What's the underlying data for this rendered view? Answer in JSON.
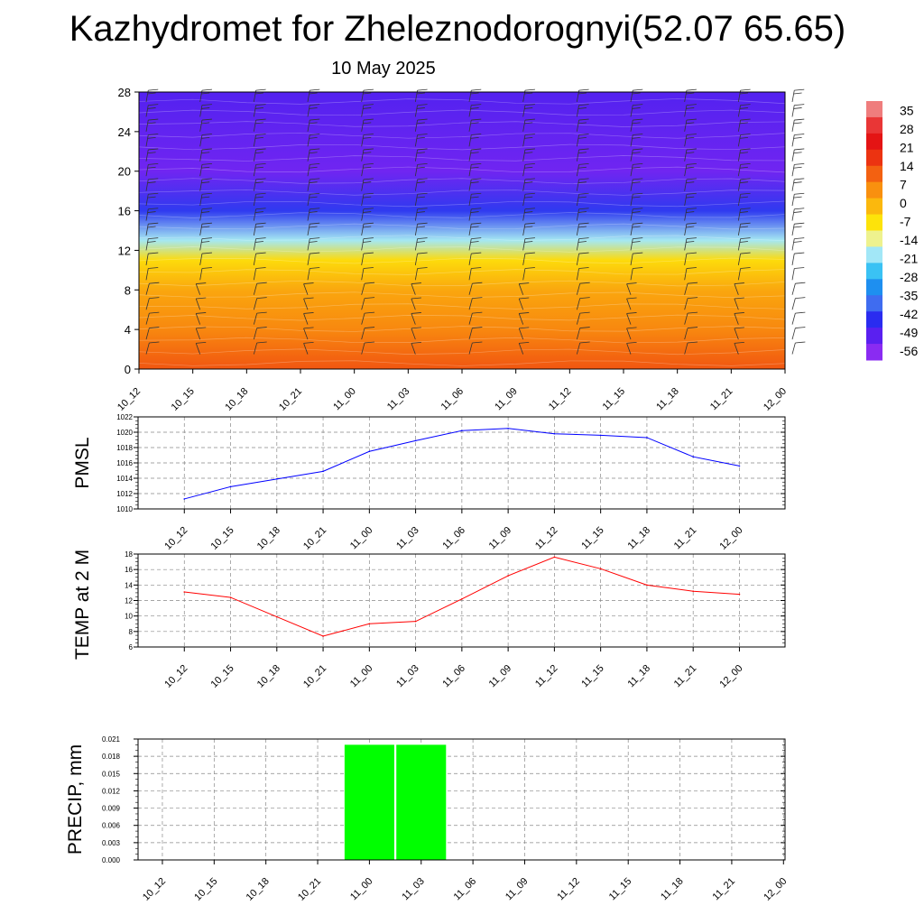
{
  "header": {
    "title": "Kazhydromet for Zheleznodorognyi(52.07 65.65)",
    "date": "10 May 2025"
  },
  "colors": {
    "pmsl_line": "#0000ff",
    "temp_line": "#ff0000",
    "precip_bar": "#00ff00",
    "grid": "#888888"
  },
  "chart_data": [
    {
      "type": "heatmap",
      "description": "vertical temperature cross-section with wind barbs",
      "x": [
        "10_12",
        "10_15",
        "10_18",
        "10_21",
        "11_00",
        "11_03",
        "11_06",
        "11_09",
        "11_12",
        "11_15",
        "11_18",
        "11_21",
        "12_00"
      ],
      "y_ticks": [
        0,
        4,
        8,
        12,
        16,
        20,
        24,
        28
      ],
      "ylim": [
        0,
        28
      ],
      "colorbar_labels": [
        "35",
        "28",
        "21",
        "14",
        "7",
        "0",
        "-7",
        "-14",
        "-21",
        "-28",
        "-35",
        "-42",
        "-49",
        "-56"
      ],
      "colorbar_colors": [
        "#ef7d7d",
        "#e93636",
        "#e41414",
        "#ec3311",
        "#f36111",
        "#f9900f",
        "#fbb80d",
        "#fde30a",
        "#eef28e",
        "#a2e7f7",
        "#3ac2f4",
        "#1e8ff0",
        "#3f6cf0",
        "#2a2cf0",
        "#5a20f0",
        "#8a2bf2"
      ],
      "color_by_height": [
        {
          "y": 0,
          "value": 14
        },
        {
          "y": 4,
          "value": 7
        },
        {
          "y": 8,
          "value": 2
        },
        {
          "y": 11,
          "value": -6
        },
        {
          "y": 13,
          "value": -20
        },
        {
          "y": 16,
          "value": -45
        },
        {
          "y": 20,
          "value": -56
        },
        {
          "y": 28,
          "value": -52
        }
      ]
    },
    {
      "type": "line",
      "ylabel": "PMSL",
      "x": [
        "10_12",
        "10_15",
        "10_18",
        "10_21",
        "11_00",
        "11_03",
        "11_06",
        "11_09",
        "11_12",
        "11_15",
        "11_18",
        "11_21",
        "12_00"
      ],
      "y_ticks": [
        1010,
        1012,
        1014,
        1016,
        1018,
        1020,
        1022
      ],
      "ylim": [
        1010,
        1022
      ],
      "series": [
        {
          "values": [
            1011.3,
            1012.9,
            1013.9,
            1014.9,
            1017.5,
            1018.9,
            1020.2,
            1020.5,
            1019.8,
            1019.6,
            1019.3,
            1016.8,
            1015.6
          ]
        }
      ]
    },
    {
      "type": "line",
      "ylabel": "TEMP at 2 M",
      "x": [
        "10_12",
        "10_15",
        "10_18",
        "10_21",
        "11_00",
        "11_03",
        "11_06",
        "11_09",
        "11_12",
        "11_15",
        "11_18",
        "11_21",
        "12_00"
      ],
      "y_ticks": [
        6,
        8,
        10,
        12,
        14,
        16,
        18
      ],
      "ylim": [
        6,
        18
      ],
      "series": [
        {
          "values": [
            13.1,
            12.4,
            9.9,
            7.4,
            9.0,
            9.3,
            12.2,
            15.2,
            17.6,
            16.1,
            14.0,
            13.2,
            12.8
          ]
        }
      ]
    },
    {
      "type": "bar",
      "ylabel": "PRECIP, mm",
      "categories": [
        "10_12",
        "10_15",
        "10_18",
        "10_21",
        "11_00",
        "11_03",
        "11_06",
        "11_09",
        "11_12",
        "11_15",
        "11_18",
        "11_21",
        "12_00"
      ],
      "values": [
        0,
        0,
        0,
        0,
        0.02,
        0.02,
        0,
        0,
        0,
        0,
        0,
        0,
        0
      ],
      "y_ticks": [
        "0.000",
        "0.003",
        "0.006",
        "0.009",
        "0.012",
        "0.015",
        "0.018",
        "0.021"
      ],
      "ylim": [
        0,
        0.021
      ]
    }
  ]
}
